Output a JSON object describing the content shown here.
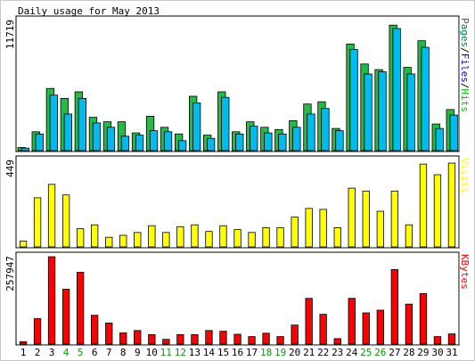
{
  "chart_data": [
    {
      "type": "bar",
      "title": "Daily usage for May 2013",
      "max_label": "11719",
      "ylim": [
        0,
        11719
      ],
      "legend": [
        {
          "label": "Pages",
          "color": "#00805C"
        },
        {
          "label": "Files",
          "color": "#0000FF"
        },
        {
          "label": "Hits",
          "color": "#00C000"
        }
      ],
      "legend_separator": "/",
      "categories": [
        "1",
        "2",
        "3",
        "4",
        "5",
        "6",
        "7",
        "8",
        "9",
        "10",
        "11",
        "12",
        "13",
        "14",
        "15",
        "16",
        "17",
        "18",
        "19",
        "20",
        "21",
        "22",
        "23",
        "24",
        "25",
        "26",
        "27",
        "28",
        "29",
        "30",
        "31"
      ],
      "weekend_days": [
        "4",
        "5",
        "11",
        "12",
        "18",
        "19",
        "25",
        "26"
      ],
      "series": [
        {
          "name": "Hits",
          "color": "#22bb44",
          "values": [
            280,
            1700,
            5600,
            4700,
            5300,
            3000,
            2600,
            2600,
            1600,
            3100,
            2100,
            1500,
            4900,
            1400,
            5300,
            1700,
            2600,
            2100,
            1900,
            2700,
            4200,
            4400,
            2000,
            9600,
            7800,
            7300,
            11300,
            7500,
            9900,
            2400,
            3700
          ]
        },
        {
          "name": "Files",
          "color": "#00bbee",
          "values": [
            230,
            1500,
            5000,
            3300,
            4700,
            2500,
            2100,
            1300,
            1400,
            1800,
            1700,
            900,
            4300,
            1100,
            4800,
            1500,
            2200,
            1600,
            1500,
            2100,
            3300,
            3800,
            1800,
            9100,
            6900,
            7100,
            11000,
            6900,
            9300,
            2000,
            3200
          ]
        }
      ]
    },
    {
      "type": "bar",
      "max_label": "449",
      "ylim": [
        0,
        449
      ],
      "legend": [
        {
          "label": "Visits",
          "color": "#FFFF00"
        }
      ],
      "categories": [
        "1",
        "2",
        "3",
        "4",
        "5",
        "6",
        "7",
        "8",
        "9",
        "10",
        "11",
        "12",
        "13",
        "14",
        "15",
        "16",
        "17",
        "18",
        "19",
        "20",
        "21",
        "22",
        "23",
        "24",
        "25",
        "26",
        "27",
        "28",
        "29",
        "30",
        "31"
      ],
      "series": [
        {
          "name": "Visits",
          "color": "#ffff00",
          "values": [
            30,
            255,
            325,
            270,
            95,
            115,
            50,
            60,
            75,
            110,
            75,
            105,
            115,
            80,
            110,
            90,
            75,
            100,
            100,
            155,
            200,
            195,
            100,
            305,
            290,
            185,
            290,
            115,
            430,
            375,
            435
          ]
        }
      ]
    },
    {
      "type": "bar",
      "max_label": "257947",
      "ylim": [
        0,
        257947
      ],
      "legend": [
        {
          "label": "KBytes",
          "color": "#FF0000"
        }
      ],
      "categories": [
        "1",
        "2",
        "3",
        "4",
        "5",
        "6",
        "7",
        "8",
        "9",
        "10",
        "11",
        "12",
        "13",
        "14",
        "15",
        "16",
        "17",
        "18",
        "19",
        "20",
        "21",
        "22",
        "23",
        "24",
        "25",
        "26",
        "27",
        "28",
        "29",
        "30",
        "31"
      ],
      "series": [
        {
          "name": "KBytes",
          "color": "#ff0000",
          "values": [
            7000,
            75000,
            257947,
            162000,
            212000,
            85000,
            62000,
            33000,
            40000,
            28000,
            14000,
            28000,
            28000,
            40000,
            38000,
            29000,
            22000,
            32000,
            22000,
            56000,
            135000,
            88000,
            16000,
            135000,
            92000,
            100000,
            220000,
            118000,
            149000,
            22000,
            30000
          ]
        }
      ]
    }
  ]
}
